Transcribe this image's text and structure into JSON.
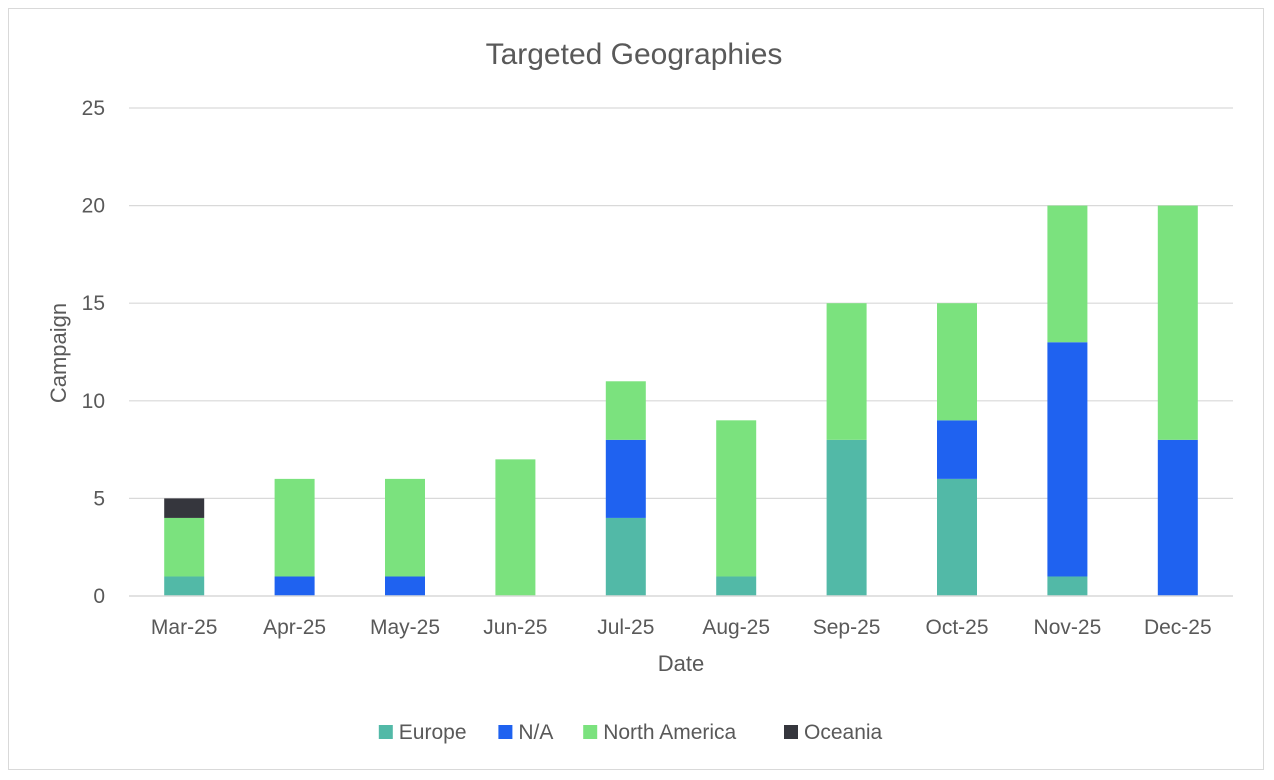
{
  "chart_data": {
    "type": "bar",
    "stacked": true,
    "title": "Targeted Geographies",
    "xlabel": "Date",
    "ylabel": "Campaign",
    "ylim": [
      0,
      25
    ],
    "yticks": [
      0,
      5,
      10,
      15,
      20,
      25
    ],
    "grid": true,
    "legend_position": "bottom",
    "categories": [
      "Mar-25",
      "Apr-25",
      "May-25",
      "Jun-25",
      "Jul-25",
      "Aug-25",
      "Sep-25",
      "Oct-25",
      "Nov-25",
      "Dec-25"
    ],
    "series": [
      {
        "name": "Europe",
        "color": "#52b9a7",
        "values": [
          1,
          0,
          0,
          0,
          4,
          1,
          8,
          6,
          1,
          0
        ]
      },
      {
        "name": "N/A",
        "color": "#1f62f0",
        "values": [
          0,
          1,
          1,
          0,
          4,
          0,
          0,
          3,
          12,
          8
        ]
      },
      {
        "name": "North America",
        "color": "#7be27e",
        "values": [
          3,
          5,
          5,
          7,
          3,
          8,
          7,
          6,
          7,
          12
        ]
      },
      {
        "name": "Oceania",
        "color": "#35363d",
        "values": [
          1,
          0,
          0,
          0,
          0,
          0,
          0,
          0,
          0,
          0
        ]
      }
    ]
  }
}
